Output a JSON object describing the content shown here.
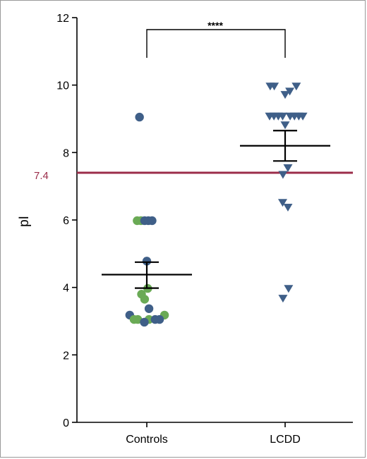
{
  "chart_data": {
    "type": "scatter",
    "ylabel": "pI",
    "ylim": [
      0,
      12
    ],
    "yticks": [
      0,
      2,
      4,
      6,
      8,
      10,
      12
    ],
    "categories": [
      "Controls",
      "LCDD"
    ],
    "reference_line": {
      "value": 7.4,
      "label": "7.4",
      "color": "#9b2d4a"
    },
    "significance": {
      "label": "****",
      "between": [
        "Controls",
        "LCDD"
      ]
    },
    "colors": {
      "blue": "#3f5f88",
      "green": "#6aaa55",
      "axis": "#000000"
    },
    "groups": [
      {
        "category": "Controls",
        "marker": "circle",
        "mean": 4.38,
        "sem_low": 3.98,
        "sem_high": 4.75,
        "points": [
          {
            "offset": -0.47,
            "y": 9.05,
            "color": "blue"
          },
          {
            "offset": -0.62,
            "y": 5.98,
            "color": "green"
          },
          {
            "offset": -0.38,
            "y": 5.98,
            "color": "green"
          },
          {
            "offset": -0.14,
            "y": 5.98,
            "color": "blue"
          },
          {
            "offset": 0.1,
            "y": 5.98,
            "color": "blue"
          },
          {
            "offset": 0.34,
            "y": 5.98,
            "color": "blue"
          },
          {
            "offset": 0.0,
            "y": 4.78,
            "color": "blue"
          },
          {
            "offset": 0.06,
            "y": 3.97,
            "color": "green"
          },
          {
            "offset": -0.34,
            "y": 3.8,
            "color": "green"
          },
          {
            "offset": -0.14,
            "y": 3.65,
            "color": "green"
          },
          {
            "offset": 0.14,
            "y": 3.37,
            "color": "blue"
          },
          {
            "offset": -1.1,
            "y": 3.18,
            "color": "blue"
          },
          {
            "offset": 1.14,
            "y": 3.18,
            "color": "green"
          },
          {
            "offset": -0.82,
            "y": 3.05,
            "color": "green"
          },
          {
            "offset": -0.58,
            "y": 3.05,
            "color": "green"
          },
          {
            "offset": 0.14,
            "y": 3.05,
            "color": "green"
          },
          {
            "offset": 0.54,
            "y": 3.05,
            "color": "blue"
          },
          {
            "offset": 0.82,
            "y": 3.05,
            "color": "blue"
          },
          {
            "offset": -0.16,
            "y": 2.97,
            "color": "blue"
          }
        ]
      },
      {
        "category": "LCDD",
        "marker": "triangle-down",
        "mean": 8.2,
        "sem_low": 7.75,
        "sem_high": 8.65,
        "points": [
          {
            "offset": -0.96,
            "y": 9.97,
            "color": "blue"
          },
          {
            "offset": -0.7,
            "y": 9.97,
            "color": "blue"
          },
          {
            "offset": 0.0,
            "y": 9.72,
            "color": "blue"
          },
          {
            "offset": 0.3,
            "y": 9.82,
            "color": "blue"
          },
          {
            "offset": 0.72,
            "y": 9.97,
            "color": "blue"
          },
          {
            "offset": -1.0,
            "y": 9.08,
            "color": "blue"
          },
          {
            "offset": -0.72,
            "y": 9.08,
            "color": "blue"
          },
          {
            "offset": -0.44,
            "y": 9.08,
            "color": "blue"
          },
          {
            "offset": -0.16,
            "y": 9.08,
            "color": "blue"
          },
          {
            "offset": 0.32,
            "y": 9.08,
            "color": "blue"
          },
          {
            "offset": 0.6,
            "y": 9.08,
            "color": "blue"
          },
          {
            "offset": 0.88,
            "y": 9.08,
            "color": "blue"
          },
          {
            "offset": 1.14,
            "y": 9.08,
            "color": "blue"
          },
          {
            "offset": 0.0,
            "y": 8.82,
            "color": "blue"
          },
          {
            "offset": 0.18,
            "y": 7.55,
            "color": "blue"
          },
          {
            "offset": -0.14,
            "y": 7.35,
            "color": "blue"
          },
          {
            "offset": -0.16,
            "y": 6.52,
            "color": "blue"
          },
          {
            "offset": 0.18,
            "y": 6.38,
            "color": "blue"
          },
          {
            "offset": 0.22,
            "y": 3.97,
            "color": "blue"
          },
          {
            "offset": -0.14,
            "y": 3.68,
            "color": "blue"
          }
        ]
      }
    ]
  }
}
